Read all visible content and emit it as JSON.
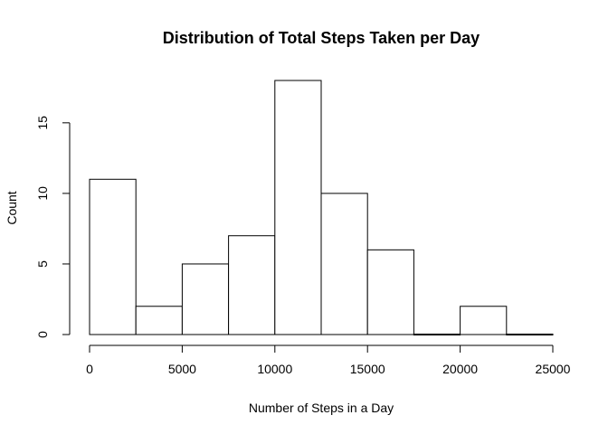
{
  "chart_data": {
    "type": "bar",
    "subtype": "histogram",
    "title": "Distribution of Total Steps Taken per Day",
    "xlabel": "Number of Steps in a Day",
    "ylabel": "Count",
    "bin_edges": [
      0,
      2500,
      5000,
      7500,
      10000,
      12500,
      15000,
      17500,
      20000,
      22500,
      25000
    ],
    "values": [
      11,
      2,
      5,
      7,
      18,
      10,
      6,
      0,
      2,
      0
    ],
    "xlim": [
      0,
      25000
    ],
    "ylim": [
      0,
      18
    ],
    "x_ticks": [
      0,
      5000,
      10000,
      15000,
      20000,
      25000
    ],
    "y_ticks": [
      0,
      5,
      10,
      15
    ],
    "grid": false,
    "legend": "none",
    "bar_fill": "#ffffff",
    "bar_stroke": "#000000"
  }
}
